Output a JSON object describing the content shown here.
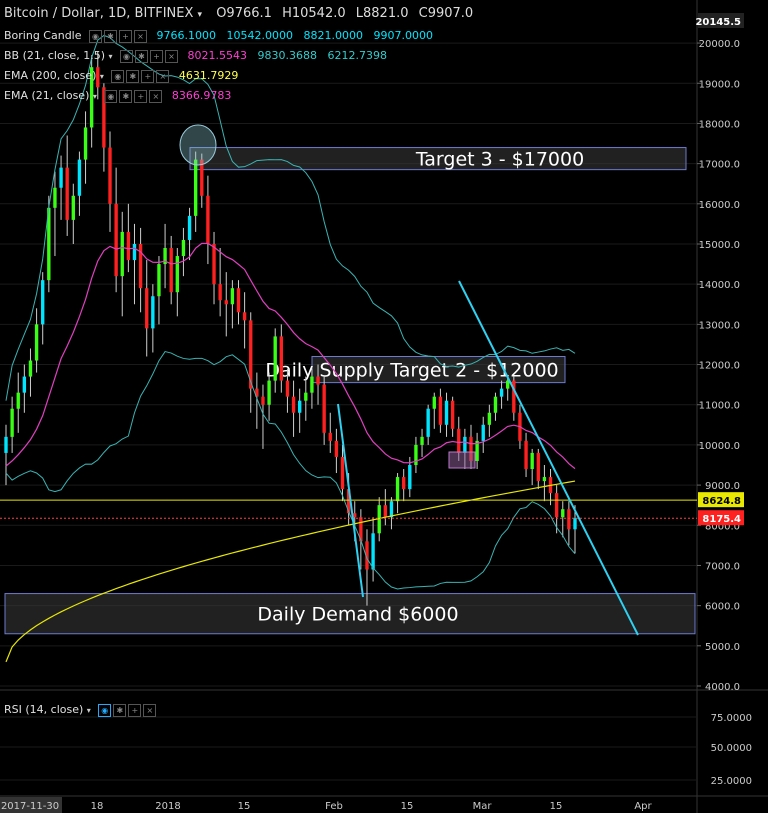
{
  "header": {
    "title": "Bitcoin / Dollar, 1D, BITFINEX",
    "ohlc": {
      "o": "O9766.1",
      "h": "H10542.0",
      "l": "L8821.0",
      "c": "C9907.0"
    }
  },
  "indicators": [
    {
      "name": "Boring Candle",
      "values": [
        "9766.1000",
        "10542.0000",
        "8821.0000",
        "9907.0000"
      ]
    },
    {
      "name": "BB (21, close, 1.5)",
      "values": [
        "8021.5543",
        "9830.3688",
        "6212.7398"
      ]
    },
    {
      "name": "EMA (200, close)",
      "values": [
        "4631.7929"
      ]
    },
    {
      "name": "EMA (21, close)",
      "values": [
        "8366.9783"
      ]
    }
  ],
  "rsi_label": "RSI (14, close)",
  "colors": {
    "up": "#39ff14",
    "down": "#ff2020",
    "up_alt": "#00e5ff",
    "down_alt": "#ff2020",
    "bb": "#3bb3b3",
    "ema21": "#e040c0",
    "ema200": "#e8e800",
    "trend": "#2fd0f0"
  },
  "chart_data": {
    "type": "candlestick",
    "title": "Bitcoin / Dollar, 1D, BITFINEX",
    "ylim": [
      4000,
      20400
    ],
    "y_ticks": [
      "20000.0",
      "19000.0",
      "18000.0",
      "17000.0",
      "16000.0",
      "15000.0",
      "14000.0",
      "13000.0",
      "12000.0",
      "11000.0",
      "10000.0",
      "9000.0",
      "8000.0",
      "7000.0",
      "6000.0",
      "5000.0",
      "4000.0"
    ],
    "price_labels": [
      {
        "text": "20145.5",
        "value": 20145.5,
        "kind": "top"
      },
      {
        "text": "8624.8",
        "value": 8624.8,
        "kind": "yellow"
      },
      {
        "text": "8175.4",
        "value": 8175.4,
        "kind": "red"
      }
    ],
    "x_ticks": [
      "2017-11-30",
      "18",
      "2018",
      "15",
      "Feb",
      "15",
      "Mar",
      "15",
      "Apr"
    ],
    "rsi_ticks": [
      "75.0000",
      "50.0000",
      "25.0000"
    ],
    "horizontal_lines": [
      {
        "name": "resistance",
        "value": 8624.8,
        "color": "#e8e800"
      },
      {
        "name": "last",
        "value": 8175.4,
        "color": "#ff4040"
      }
    ],
    "zones": [
      {
        "label": "Target 3 - $17000",
        "top": 17400,
        "bottom": 16850
      },
      {
        "label": "Daily Supply Target 2 - $12000",
        "top": 12200,
        "bottom": 11550
      },
      {
        "label": "Daily Demand $6000",
        "top": 6300,
        "bottom": 5300
      }
    ],
    "candles": [
      {
        "o": 9800,
        "h": 10500,
        "l": 9000,
        "c": 10200
      },
      {
        "o": 10200,
        "h": 11200,
        "l": 9800,
        "c": 10900
      },
      {
        "o": 10900,
        "h": 11800,
        "l": 10300,
        "c": 11300
      },
      {
        "o": 11300,
        "h": 12000,
        "l": 10800,
        "c": 11700
      },
      {
        "o": 11700,
        "h": 12400,
        "l": 11200,
        "c": 12100
      },
      {
        "o": 12100,
        "h": 13400,
        "l": 11800,
        "c": 13000
      },
      {
        "o": 13000,
        "h": 14300,
        "l": 12500,
        "c": 14100
      },
      {
        "o": 14100,
        "h": 16200,
        "l": 13800,
        "c": 15900
      },
      {
        "o": 15900,
        "h": 16800,
        "l": 14700,
        "c": 16400
      },
      {
        "o": 16400,
        "h": 17200,
        "l": 15600,
        "c": 16900
      },
      {
        "o": 16900,
        "h": 17700,
        "l": 15200,
        "c": 15600
      },
      {
        "o": 15600,
        "h": 16500,
        "l": 15000,
        "c": 16200
      },
      {
        "o": 16200,
        "h": 17300,
        "l": 15700,
        "c": 17100
      },
      {
        "o": 17100,
        "h": 18300,
        "l": 16500,
        "c": 17900
      },
      {
        "o": 17900,
        "h": 19700,
        "l": 17400,
        "c": 19400
      },
      {
        "o": 19400,
        "h": 19800,
        "l": 18600,
        "c": 18900
      },
      {
        "o": 18900,
        "h": 19000,
        "l": 16800,
        "c": 17400
      },
      {
        "o": 17400,
        "h": 17800,
        "l": 15300,
        "c": 16000
      },
      {
        "o": 16000,
        "h": 16900,
        "l": 13800,
        "c": 14200
      },
      {
        "o": 14200,
        "h": 15800,
        "l": 13200,
        "c": 15300
      },
      {
        "o": 15300,
        "h": 16000,
        "l": 14300,
        "c": 14600
      },
      {
        "o": 14600,
        "h": 15500,
        "l": 13500,
        "c": 15000
      },
      {
        "o": 15000,
        "h": 15400,
        "l": 13300,
        "c": 13900
      },
      {
        "o": 13900,
        "h": 14600,
        "l": 12200,
        "c": 12900
      },
      {
        "o": 12900,
        "h": 14000,
        "l": 12300,
        "c": 13700
      },
      {
        "o": 13700,
        "h": 14700,
        "l": 13000,
        "c": 14500
      },
      {
        "o": 14500,
        "h": 15500,
        "l": 13900,
        "c": 14900
      },
      {
        "o": 14900,
        "h": 15200,
        "l": 13500,
        "c": 13800
      },
      {
        "o": 13800,
        "h": 14900,
        "l": 13200,
        "c": 14700
      },
      {
        "o": 14700,
        "h": 15400,
        "l": 14200,
        "c": 15100
      },
      {
        "o": 15100,
        "h": 15900,
        "l": 14600,
        "c": 15700
      },
      {
        "o": 15700,
        "h": 17300,
        "l": 15300,
        "c": 17100
      },
      {
        "o": 17100,
        "h": 17250,
        "l": 15900,
        "c": 16200
      },
      {
        "o": 16200,
        "h": 16700,
        "l": 14500,
        "c": 15000
      },
      {
        "o": 15000,
        "h": 15300,
        "l": 13500,
        "c": 14000
      },
      {
        "o": 14000,
        "h": 14900,
        "l": 13200,
        "c": 13600
      },
      {
        "o": 13600,
        "h": 14300,
        "l": 12700,
        "c": 13500
      },
      {
        "o": 13500,
        "h": 14100,
        "l": 12900,
        "c": 13900
      },
      {
        "o": 13900,
        "h": 14100,
        "l": 13000,
        "c": 13300
      },
      {
        "o": 13300,
        "h": 13800,
        "l": 12400,
        "c": 13100
      },
      {
        "o": 13100,
        "h": 13300,
        "l": 10800,
        "c": 11400
      },
      {
        "o": 11400,
        "h": 11800,
        "l": 10400,
        "c": 11200
      },
      {
        "o": 11200,
        "h": 11500,
        "l": 9900,
        "c": 11000
      },
      {
        "o": 11000,
        "h": 11800,
        "l": 10600,
        "c": 11600
      },
      {
        "o": 11600,
        "h": 12900,
        "l": 11300,
        "c": 12700
      },
      {
        "o": 12700,
        "h": 13000,
        "l": 11300,
        "c": 11600
      },
      {
        "o": 11600,
        "h": 11900,
        "l": 10800,
        "c": 11200
      },
      {
        "o": 11200,
        "h": 11600,
        "l": 10200,
        "c": 10800
      },
      {
        "o": 10800,
        "h": 11400,
        "l": 10300,
        "c": 11100
      },
      {
        "o": 11100,
        "h": 11700,
        "l": 10600,
        "c": 11300
      },
      {
        "o": 11300,
        "h": 11900,
        "l": 10900,
        "c": 11700
      },
      {
        "o": 11700,
        "h": 12000,
        "l": 11000,
        "c": 11500
      },
      {
        "o": 11500,
        "h": 11700,
        "l": 10000,
        "c": 10300
      },
      {
        "o": 10300,
        "h": 10800,
        "l": 9800,
        "c": 10100
      },
      {
        "o": 10100,
        "h": 10400,
        "l": 9300,
        "c": 9700
      },
      {
        "o": 9700,
        "h": 10000,
        "l": 8600,
        "c": 8900
      },
      {
        "o": 8900,
        "h": 9300,
        "l": 8000,
        "c": 8300
      },
      {
        "o": 8300,
        "h": 8600,
        "l": 7600,
        "c": 8200
      },
      {
        "o": 8200,
        "h": 8400,
        "l": 6900,
        "c": 7600
      },
      {
        "o": 7600,
        "h": 7900,
        "l": 6000,
        "c": 6900
      },
      {
        "o": 6900,
        "h": 8200,
        "l": 6600,
        "c": 7800
      },
      {
        "o": 7800,
        "h": 8700,
        "l": 7600,
        "c": 8500
      },
      {
        "o": 8500,
        "h": 8900,
        "l": 8000,
        "c": 8200
      },
      {
        "o": 8200,
        "h": 8700,
        "l": 7900,
        "c": 8600
      },
      {
        "o": 8600,
        "h": 9300,
        "l": 8300,
        "c": 9200
      },
      {
        "o": 9200,
        "h": 9400,
        "l": 8600,
        "c": 8900
      },
      {
        "o": 8900,
        "h": 9700,
        "l": 8700,
        "c": 9500
      },
      {
        "o": 9500,
        "h": 10200,
        "l": 9300,
        "c": 10000
      },
      {
        "o": 10000,
        "h": 10400,
        "l": 9700,
        "c": 10200
      },
      {
        "o": 10200,
        "h": 11000,
        "l": 10000,
        "c": 10900
      },
      {
        "o": 10900,
        "h": 11300,
        "l": 10400,
        "c": 11200
      },
      {
        "o": 11200,
        "h": 11400,
        "l": 10300,
        "c": 10500
      },
      {
        "o": 10500,
        "h": 11300,
        "l": 10200,
        "c": 11100
      },
      {
        "o": 11100,
        "h": 11200,
        "l": 10200,
        "c": 10400
      },
      {
        "o": 10400,
        "h": 10700,
        "l": 9600,
        "c": 9800
      },
      {
        "o": 9800,
        "h": 10400,
        "l": 9400,
        "c": 10200
      },
      {
        "o": 10200,
        "h": 10500,
        "l": 9400,
        "c": 9600
      },
      {
        "o": 9600,
        "h": 10300,
        "l": 9400,
        "c": 10100
      },
      {
        "o": 10100,
        "h": 10700,
        "l": 9800,
        "c": 10500
      },
      {
        "o": 10500,
        "h": 11000,
        "l": 10200,
        "c": 10800
      },
      {
        "o": 10800,
        "h": 11300,
        "l": 10600,
        "c": 11200
      },
      {
        "o": 11200,
        "h": 11600,
        "l": 10900,
        "c": 11400
      },
      {
        "o": 11400,
        "h": 11700,
        "l": 11100,
        "c": 11600
      },
      {
        "o": 11600,
        "h": 11700,
        "l": 10600,
        "c": 10800
      },
      {
        "o": 10800,
        "h": 11000,
        "l": 9900,
        "c": 10100
      },
      {
        "o": 10100,
        "h": 10300,
        "l": 9200,
        "c": 9400
      },
      {
        "o": 9400,
        "h": 9900,
        "l": 9000,
        "c": 9800
      },
      {
        "o": 9800,
        "h": 9900,
        "l": 8900,
        "c": 9100
      },
      {
        "o": 9100,
        "h": 9500,
        "l": 8600,
        "c": 9200
      },
      {
        "o": 9200,
        "h": 9400,
        "l": 8500,
        "c": 8800
      },
      {
        "o": 8800,
        "h": 9000,
        "l": 7800,
        "c": 8200
      },
      {
        "o": 8200,
        "h": 8600,
        "l": 7700,
        "c": 8400
      },
      {
        "o": 8400,
        "h": 8600,
        "l": 7500,
        "c": 7900
      },
      {
        "o": 7900,
        "h": 8500,
        "l": 7300,
        "c": 8175
      }
    ]
  }
}
